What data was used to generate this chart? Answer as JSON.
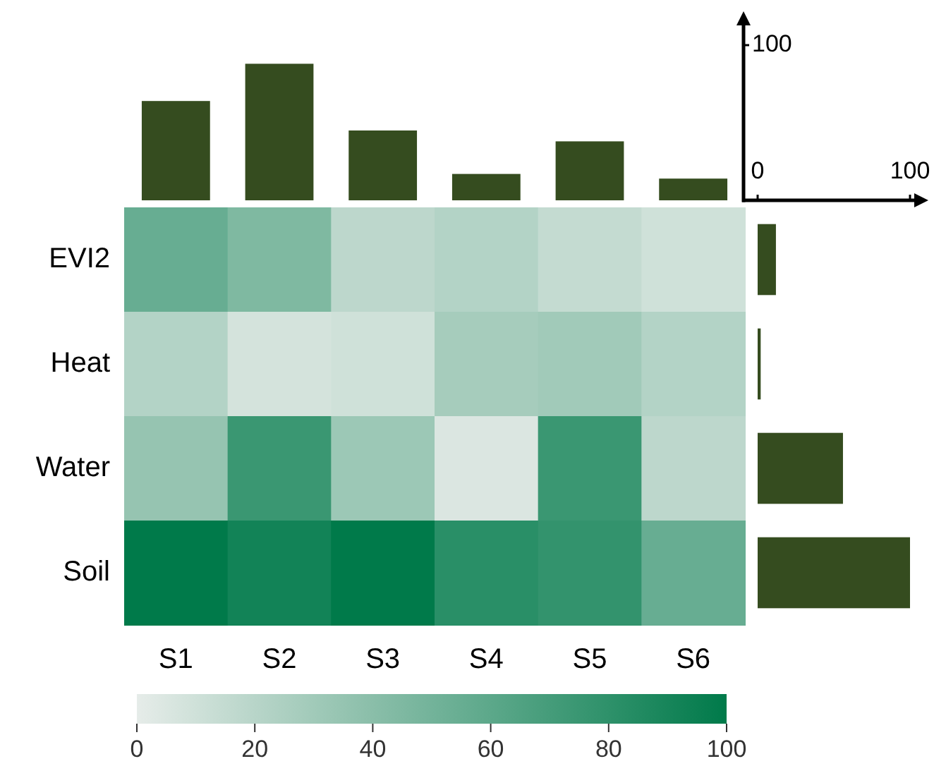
{
  "chart_data": [
    {
      "type": "bar",
      "categories": [
        null,
        null,
        null,
        null,
        null,
        null
      ],
      "values": [
        64,
        88,
        45,
        17,
        38,
        14
      ],
      "color": "#354c1f",
      "ylim": [
        0,
        100
      ],
      "yticks": [
        {
          "value": 0,
          "label": null
        },
        100
      ],
      "tick_labels": "y"
    },
    {
      "type": "bar",
      "orientation": "horizontal",
      "categories": [
        null,
        null,
        null,
        null
      ],
      "values": [
        12,
        2,
        56,
        100
      ],
      "color": "#354c1f",
      "xlim": [
        0,
        100
      ],
      "xticks": [
        0,
        100
      ],
      "tick_labels": "x"
    },
    {
      "type": "heatmap",
      "categories": [
        "S1",
        "S2",
        "S3",
        "S4",
        "S5",
        "S6"
      ],
      "y_categories": [
        "EVI2",
        "Heat",
        "Water",
        "Soil"
      ],
      "cells": [
        [
          55,
          45,
          18,
          22,
          15,
          10
        ],
        [
          22,
          8,
          10,
          28,
          30,
          22
        ],
        [
          35,
          75,
          32,
          5,
          75,
          18
        ],
        [
          100,
          92,
          100,
          82,
          78,
          55
        ]
      ],
      "clim": [
        0,
        100
      ],
      "cticks": [
        0,
        20,
        40,
        60,
        80,
        100
      ]
    }
  ]
}
